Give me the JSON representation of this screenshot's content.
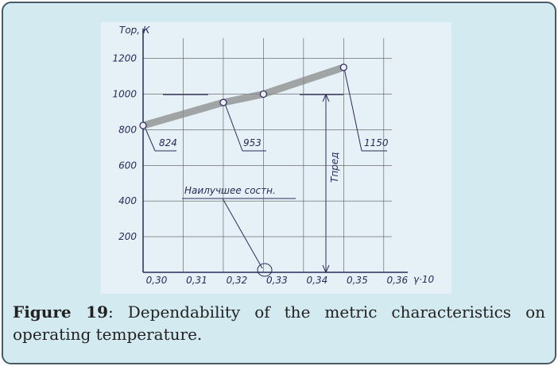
{
  "figure": {
    "label": "Figure 19",
    "caption": ": Dependability of the metric characteristics on operating temperature."
  },
  "chart_data": {
    "type": "line",
    "y_label": "Тор, К",
    "x_label": "γ·10",
    "x": [
      0.3,
      0.32,
      0.33,
      0.35
    ],
    "values": [
      824,
      953,
      1000,
      1150
    ],
    "color": "#8a8a8a",
    "xlim": [
      0.3,
      0.364
    ],
    "ylim": [
      0,
      1350
    ],
    "xticks": [
      {
        "value": 0.3,
        "label": "0,30"
      },
      {
        "value": 0.31,
        "label": "0,31"
      },
      {
        "value": 0.32,
        "label": "0,32"
      },
      {
        "value": 0.33,
        "label": "0,33"
      },
      {
        "value": 0.34,
        "label": "0,34"
      },
      {
        "value": 0.35,
        "label": "0,35"
      },
      {
        "value": 0.36,
        "label": "0,36"
      }
    ],
    "yticks": [
      200,
      400,
      600,
      800,
      1000,
      1200
    ],
    "grid": true,
    "annotations": [
      "824",
      "953",
      "1150",
      "Наилучшее состн.",
      "Тпред"
    ]
  }
}
